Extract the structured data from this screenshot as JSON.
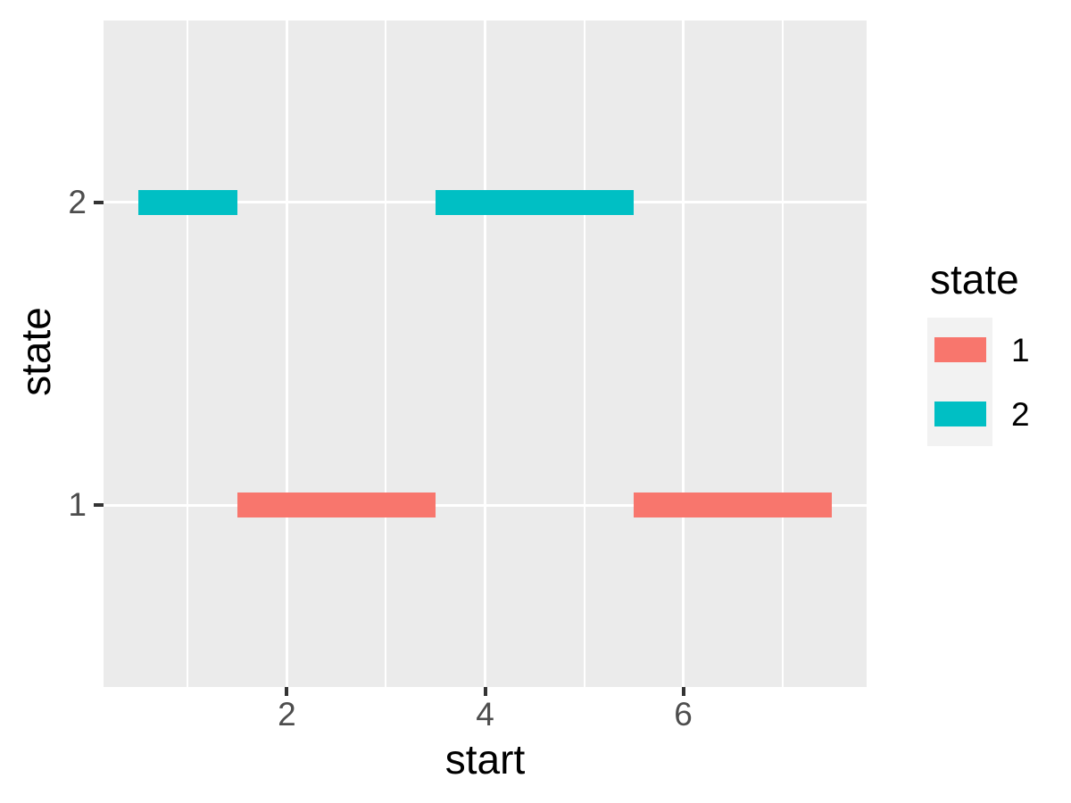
{
  "colors": {
    "background": "#FFFFFF",
    "panel_background": "#EBEBEB",
    "gridline": "#FFFFFF",
    "tick_mark": "#333333",
    "axis_text": "#4D4D4D",
    "title_text": "#000000",
    "legend_key_background": "#F2F2F2",
    "state_1": "#F8766D",
    "state_2": "#00BFC4"
  },
  "chart_data": {
    "type": "segment",
    "title": "",
    "xlabel": "start",
    "ylabel": "state",
    "xlim": [
      0.15,
      7.85
    ],
    "ylim": [
      0.4,
      2.6
    ],
    "grid": "white major+minor vertical gridlines, white major horizontal gridlines, grey panel",
    "legend_position": "right",
    "x_ticks": [
      {
        "value": 2,
        "label": "2"
      },
      {
        "value": 4,
        "label": "4"
      },
      {
        "value": 6,
        "label": "6"
      }
    ],
    "x_minor_breaks": [
      1,
      3,
      5,
      7
    ],
    "y_ticks": [
      {
        "value": 1,
        "label": "1"
      },
      {
        "value": 2,
        "label": "2"
      }
    ],
    "segments": [
      {
        "start": 0.5,
        "end": 1.5,
        "state": 2,
        "series": "2",
        "color": "#00BFC4"
      },
      {
        "start": 1.5,
        "end": 3.5,
        "state": 1,
        "series": "1",
        "color": "#F8766D"
      },
      {
        "start": 3.5,
        "end": 5.5,
        "state": 2,
        "series": "2",
        "color": "#00BFC4"
      },
      {
        "start": 5.5,
        "end": 7.5,
        "state": 1,
        "series": "1",
        "color": "#F8766D"
      }
    ],
    "legend": {
      "title": "state",
      "entries": [
        {
          "label": "1",
          "color": "#F8766D"
        },
        {
          "label": "2",
          "color": "#00BFC4"
        }
      ]
    }
  }
}
